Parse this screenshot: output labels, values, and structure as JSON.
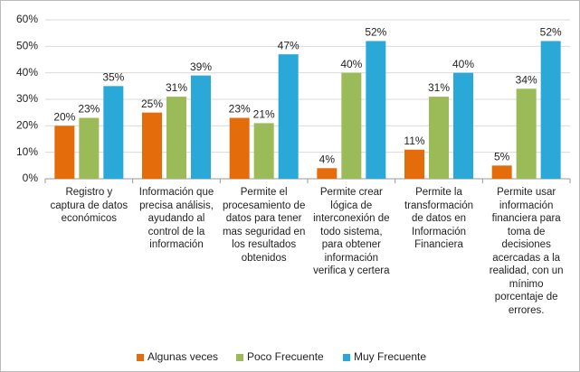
{
  "chart_data": {
    "type": "bar",
    "categories": [
      "Registro y captura de datos económicos",
      "Información que precisa análisis, ayudando al control de la información",
      "Permite el procesamiento de datos para tener mas seguridad en los resultados obtenidos",
      "Permite crear lógica de interconexión de todo sistema, para obtener información verifica y certera",
      "Permite la transformación de datos en Información Financiera",
      "Permite usar información financiera para toma de decisiones acercadas a la realidad, con un mínimo porcentaje de errores."
    ],
    "series": [
      {
        "name": "Algunas veces",
        "color": "#e46c0a",
        "values": [
          20,
          25,
          23,
          4,
          11,
          5
        ],
        "value_labels": [
          "20%",
          "25%",
          "23%",
          "4%",
          "11%",
          "5%"
        ]
      },
      {
        "name": "Poco Frecuente",
        "color": "#9bbb59",
        "values": [
          23,
          31,
          21,
          40,
          31,
          34
        ],
        "value_labels": [
          "23%",
          "31%",
          "21%",
          "40%",
          "31%",
          "34%"
        ]
      },
      {
        "name": "Muy Frecuente",
        "color": "#2aa8d8",
        "values": [
          35,
          39,
          47,
          52,
          40,
          52
        ],
        "value_labels": [
          "35%",
          "39%",
          "47%",
          "52%",
          "40%",
          "52%"
        ]
      }
    ],
    "ylim": [
      0,
      60
    ],
    "yticks": [
      {
        "value": 0,
        "label": "0%"
      },
      {
        "value": 10,
        "label": "10%"
      },
      {
        "value": 20,
        "label": "20%"
      },
      {
        "value": 30,
        "label": "30%"
      },
      {
        "value": 40,
        "label": "40%"
      },
      {
        "value": 50,
        "label": "50%"
      },
      {
        "value": 60,
        "label": "60%"
      }
    ],
    "grid": true,
    "legend": "bottom"
  }
}
